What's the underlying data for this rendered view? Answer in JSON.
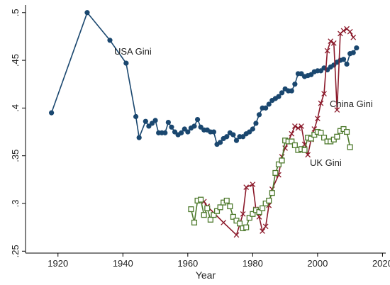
{
  "chart_data": {
    "type": "line",
    "title": "",
    "xlabel": "Year",
    "ylabel": "",
    "xlim": [
      1910,
      2021
    ],
    "ylim": [
      0.248,
      0.508
    ],
    "x_ticks": [
      1920,
      1940,
      1960,
      1980,
      2000,
      2020
    ],
    "y_ticks": [
      0.25,
      0.3,
      0.35,
      0.4,
      0.45,
      0.5
    ],
    "y_tick_labels": [
      ".25",
      ".3",
      ".35",
      ".4",
      ".45",
      ".5"
    ],
    "grid": false,
    "legend": "none",
    "annotations": [
      {
        "text": "USA Gini",
        "x": 1941,
        "y": 0.462
      },
      {
        "text": "China Gini",
        "x": 2007,
        "y": 0.405
      },
      {
        "text": "UK Gini",
        "x": 2001,
        "y": 0.34
      }
    ],
    "series": [
      {
        "name": "USA Gini",
        "color": "#1a476f",
        "marker": "filled-circle",
        "line": true,
        "points": [
          [
            1918,
            0.395
          ],
          [
            1929,
            0.5
          ],
          [
            1936,
            0.471
          ],
          [
            1941,
            0.447
          ],
          [
            1944,
            0.391
          ],
          [
            1945,
            0.369
          ],
          [
            1947,
            0.386
          ],
          [
            1948,
            0.381
          ],
          [
            1949,
            0.384
          ],
          [
            1950,
            0.387
          ],
          [
            1951,
            0.374
          ],
          [
            1952,
            0.374
          ],
          [
            1953,
            0.374
          ],
          [
            1954,
            0.385
          ],
          [
            1955,
            0.38
          ],
          [
            1956,
            0.375
          ],
          [
            1957,
            0.372
          ],
          [
            1958,
            0.374
          ],
          [
            1959,
            0.378
          ],
          [
            1960,
            0.375
          ],
          [
            1961,
            0.379
          ],
          [
            1962,
            0.381
          ],
          [
            1963,
            0.388
          ],
          [
            1964,
            0.38
          ],
          [
            1965,
            0.377
          ],
          [
            1966,
            0.377
          ],
          [
            1967,
            0.375
          ],
          [
            1968,
            0.375
          ],
          [
            1969,
            0.362
          ],
          [
            1970,
            0.364
          ],
          [
            1971,
            0.368
          ],
          [
            1972,
            0.37
          ],
          [
            1973,
            0.374
          ],
          [
            1974,
            0.372
          ],
          [
            1975,
            0.366
          ],
          [
            1976,
            0.37
          ],
          [
            1977,
            0.37
          ],
          [
            1978,
            0.373
          ],
          [
            1979,
            0.375
          ],
          [
            1980,
            0.378
          ],
          [
            1981,
            0.384
          ],
          [
            1982,
            0.393
          ],
          [
            1983,
            0.4
          ],
          [
            1984,
            0.4
          ],
          [
            1985,
            0.404
          ],
          [
            1986,
            0.408
          ],
          [
            1987,
            0.41
          ],
          [
            1988,
            0.412
          ],
          [
            1989,
            0.416
          ],
          [
            1990,
            0.42
          ],
          [
            1991,
            0.418
          ],
          [
            1992,
            0.418
          ],
          [
            1993,
            0.425
          ],
          [
            1994,
            0.436
          ],
          [
            1995,
            0.436
          ],
          [
            1996,
            0.433
          ],
          [
            1997,
            0.434
          ],
          [
            1998,
            0.435
          ],
          [
            1999,
            0.438
          ],
          [
            2000,
            0.439
          ],
          [
            2001,
            0.439
          ],
          [
            2002,
            0.442
          ],
          [
            2003,
            0.44
          ],
          [
            2004,
            0.443
          ],
          [
            2005,
            0.445
          ],
          [
            2006,
            0.448
          ],
          [
            2007,
            0.45
          ],
          [
            2008,
            0.451
          ],
          [
            2009,
            0.446
          ],
          [
            2010,
            0.457
          ],
          [
            2011,
            0.458
          ],
          [
            2012,
            0.463
          ]
        ]
      },
      {
        "name": "China Gini",
        "color": "#8b1a2b",
        "marker": "x",
        "line": true,
        "points": [
          [
            1964,
            0.304
          ],
          [
            1965,
            0.302
          ],
          [
            1966,
            0.297
          ],
          [
            1971,
            0.28
          ],
          [
            1975,
            0.267
          ],
          [
            1977,
            0.289
          ],
          [
            1978,
            0.317
          ],
          [
            1980,
            0.32
          ],
          [
            1981,
            0.294
          ],
          [
            1982,
            0.286
          ],
          [
            1983,
            0.271
          ],
          [
            1984,
            0.276
          ],
          [
            1985,
            0.298
          ],
          [
            1986,
            0.315
          ],
          [
            1988,
            0.33
          ],
          [
            1989,
            0.349
          ],
          [
            1990,
            0.358
          ],
          [
            1991,
            0.365
          ],
          [
            1992,
            0.373
          ],
          [
            1993,
            0.381
          ],
          [
            1994,
            0.379
          ],
          [
            1995,
            0.381
          ],
          [
            1996,
            0.362
          ],
          [
            1997,
            0.351
          ],
          [
            1998,
            0.367
          ],
          [
            1999,
            0.378
          ],
          [
            2000,
            0.389
          ],
          [
            2001,
            0.405
          ],
          [
            2002,
            0.415
          ],
          [
            2003,
            0.46
          ],
          [
            2004,
            0.47
          ],
          [
            2005,
            0.468
          ],
          [
            2006,
            0.398
          ],
          [
            2007,
            0.478
          ],
          [
            2008,
            0.481
          ],
          [
            2009,
            0.483
          ],
          [
            2010,
            0.48
          ],
          [
            2011,
            0.474
          ]
        ]
      },
      {
        "name": "UK Gini",
        "color": "#4e7a2d",
        "marker": "hollow-square",
        "line": true,
        "points": [
          [
            1961,
            0.294
          ],
          [
            1962,
            0.28
          ],
          [
            1963,
            0.303
          ],
          [
            1964,
            0.304
          ],
          [
            1965,
            0.288
          ],
          [
            1966,
            0.295
          ],
          [
            1967,
            0.283
          ],
          [
            1968,
            0.288
          ],
          [
            1969,
            0.292
          ],
          [
            1970,
            0.296
          ],
          [
            1971,
            0.301
          ],
          [
            1972,
            0.303
          ],
          [
            1973,
            0.297
          ],
          [
            1974,
            0.286
          ],
          [
            1975,
            0.282
          ],
          [
            1976,
            0.279
          ],
          [
            1977,
            0.274
          ],
          [
            1978,
            0.275
          ],
          [
            1979,
            0.285
          ],
          [
            1980,
            0.289
          ],
          [
            1981,
            0.293
          ],
          [
            1982,
            0.291
          ],
          [
            1983,
            0.295
          ],
          [
            1984,
            0.3
          ],
          [
            1985,
            0.303
          ],
          [
            1986,
            0.311
          ],
          [
            1987,
            0.332
          ],
          [
            1988,
            0.341
          ],
          [
            1989,
            0.345
          ],
          [
            1990,
            0.366
          ],
          [
            1991,
            0.365
          ],
          [
            1992,
            0.365
          ],
          [
            1993,
            0.361
          ],
          [
            1994,
            0.356
          ],
          [
            1995,
            0.357
          ],
          [
            1996,
            0.356
          ],
          [
            1997,
            0.369
          ],
          [
            1998,
            0.368
          ],
          [
            1999,
            0.372
          ],
          [
            2000,
            0.375
          ],
          [
            2001,
            0.374
          ],
          [
            2002,
            0.369
          ],
          [
            2003,
            0.365
          ],
          [
            2004,
            0.365
          ],
          [
            2005,
            0.367
          ],
          [
            2006,
            0.37
          ],
          [
            2007,
            0.376
          ],
          [
            2008,
            0.378
          ],
          [
            2009,
            0.375
          ],
          [
            2010,
            0.359
          ]
        ]
      }
    ]
  }
}
